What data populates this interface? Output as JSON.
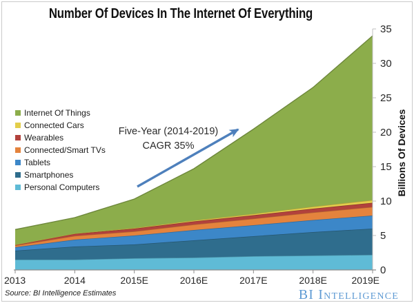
{
  "chart_data": {
    "type": "area",
    "stacked": true,
    "title": "Number Of Devices In The Internet Of Everything",
    "ylabel": "Billions Of Devices",
    "ylim": [
      0,
      35
    ],
    "yticks": [
      0,
      5,
      10,
      15,
      20,
      25,
      30,
      35
    ],
    "grid": false,
    "legend_position": "left",
    "categories": [
      "2013",
      "2014",
      "2015E",
      "2016E",
      "2017E",
      "2018E",
      "2019E"
    ],
    "series": [
      {
        "name": "Personal Computers",
        "color": "#5fbbd6",
        "values": [
          1.5,
          1.5,
          1.7,
          1.8,
          2.0,
          2.1,
          2.2
        ]
      },
      {
        "name": "Smartphones",
        "color": "#2f6d8d",
        "values": [
          1.3,
          1.9,
          2.0,
          2.5,
          2.9,
          3.4,
          3.8
        ]
      },
      {
        "name": "Tablets",
        "color": "#3c87c8",
        "values": [
          0.5,
          1.0,
          1.3,
          1.5,
          1.6,
          1.75,
          1.9
        ]
      },
      {
        "name": "Connected/Smart TVs",
        "color": "#e4833d",
        "values": [
          0.25,
          0.55,
          0.6,
          0.8,
          0.95,
          1.1,
          1.25
        ]
      },
      {
        "name": "Wearables",
        "color": "#b2423c",
        "values": [
          0.1,
          0.3,
          0.4,
          0.45,
          0.5,
          0.55,
          0.6
        ]
      },
      {
        "name": "Connected Cars",
        "color": "#e3ce4b",
        "values": [
          0.02,
          0.05,
          0.1,
          0.15,
          0.2,
          0.3,
          0.4
        ]
      },
      {
        "name": "Internet Of Things",
        "color": "#8cad4b",
        "values": [
          2.2,
          2.3,
          4.2,
          7.5,
          12.3,
          17.3,
          23.85
        ]
      }
    ],
    "totals": [
      5.87,
      7.6,
      10.3,
      14.7,
      20.45,
      26.5,
      34.0
    ],
    "legend_order_top_to_bottom": [
      "Internet Of Things",
      "Connected Cars",
      "Wearables",
      "Connected/Smart TVs",
      "Tablets",
      "Smartphones",
      "Personal Computers"
    ],
    "annotation": {
      "line1": "Five-Year (2014-2019)",
      "line2": "CAGR 35%",
      "arrow_color": "#4e80bc"
    }
  },
  "footer": {
    "source": "Source: BI Intelligence Estimates",
    "brand": "BI Intelligence",
    "brand_color": "#5e9ad3"
  }
}
